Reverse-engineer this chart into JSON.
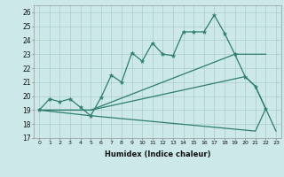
{
  "xlabel": "Humidex (Indice chaleur)",
  "background_color": "#cce8e8",
  "grid_color": "#aacccc",
  "line_color": "#2e7d6e",
  "xlim": [
    -0.5,
    23.5
  ],
  "ylim": [
    17,
    26.5
  ],
  "yticks": [
    17,
    18,
    19,
    20,
    21,
    22,
    23,
    24,
    25,
    26
  ],
  "xticks": [
    0,
    1,
    2,
    3,
    4,
    5,
    6,
    7,
    8,
    9,
    10,
    11,
    12,
    13,
    14,
    15,
    16,
    17,
    18,
    19,
    20,
    21,
    22,
    23
  ],
  "series": [
    {
      "x": [
        0,
        1,
        2,
        3,
        4,
        5,
        6,
        7,
        8,
        9,
        10,
        11,
        12,
        13,
        14,
        15,
        16,
        17,
        18,
        19,
        20,
        21,
        22
      ],
      "y": [
        19.0,
        19.8,
        19.6,
        19.8,
        19.2,
        18.6,
        19.9,
        21.5,
        21.0,
        23.1,
        22.5,
        23.8,
        23.0,
        22.9,
        24.6,
        24.6,
        24.6,
        25.8,
        24.5,
        23.0,
        21.4,
        20.7,
        19.1
      ]
    },
    {
      "x": [
        0,
        5,
        19,
        22
      ],
      "y": [
        19.0,
        19.0,
        23.0,
        23.0
      ]
    },
    {
      "x": [
        0,
        5,
        20,
        21,
        22
      ],
      "y": [
        19.0,
        19.0,
        21.4,
        20.7,
        19.1
      ]
    },
    {
      "x": [
        0,
        5,
        21,
        22,
        23
      ],
      "y": [
        19.0,
        18.6,
        17.5,
        19.1,
        17.5
      ]
    }
  ]
}
